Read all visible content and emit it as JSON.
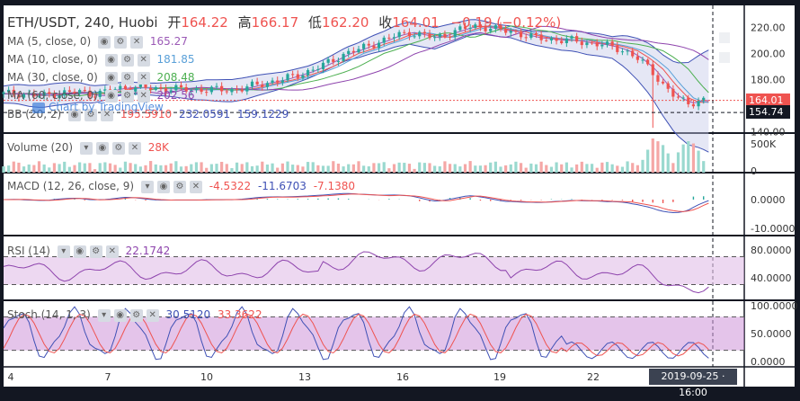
{
  "header": {
    "symbol": "ETH/USDT, 240, Huobi",
    "open_label": "开",
    "open": "164.22",
    "high_label": "高",
    "high": "166.17",
    "low_label": "低",
    "low": "162.20",
    "close_label": "收",
    "close": "164.01",
    "change": "−0.19 (−0.12%)"
  },
  "legends": {
    "ma5": {
      "label": "MA (5, close, 0)",
      "value": "165.27",
      "color": "#9b59b6"
    },
    "ma10": {
      "label": "MA (10, close, 0)",
      "value": "181.85",
      "color": "#5aa0d8"
    },
    "ma30": {
      "label": "MA (30, close, 0)",
      "value": "208.48",
      "color": "#4caf50"
    },
    "ma60": {
      "label": "MA (60, close, 0)",
      "value": "202.56",
      "color": "#8e44ad"
    },
    "bb": {
      "label": "BB (20, 2)",
      "v1": "195.5910",
      "v2": "232.0591",
      "v3": "159.1229"
    },
    "volume": {
      "label": "Volume (20)",
      "value": "28K"
    },
    "macd": {
      "label": "MACD (12, 26, close, 9)",
      "v1": "-4.5322",
      "v2": "-11.6703",
      "v3": "-7.1380"
    },
    "rsi": {
      "label": "RSI (14)",
      "value": "22.1742"
    },
    "stoch": {
      "label": "Stoch (14, 1, 3)",
      "v1": "30.5120",
      "v2": "33.3622"
    }
  },
  "watermark": "Chart by TradingView",
  "price_tags": {
    "last": "164.01",
    "crosshair": "154.74",
    "last_color": "#ef5350",
    "crosshair_color": "#131722"
  },
  "crosshair_time": "2019-09-25 · 16:00",
  "colors": {
    "up": "#26a69a",
    "down": "#ef5350",
    "bb_fill": "#c5cae9",
    "rsi_band": "#e1bee7",
    "stoch_band": "#ce93d8"
  },
  "chart_data": [
    {
      "type": "candlestick",
      "title": "ETH/USDT, 240, Huobi",
      "x_ticks": [
        "4",
        "7",
        "10",
        "13",
        "16",
        "19",
        "22"
      ],
      "y_ticks": [
        140,
        160,
        180,
        200,
        220
      ],
      "ylim": [
        139,
        234
      ],
      "last": 164.01,
      "crosshair_y": 154.74,
      "close_path": [
        [
          0,
          169
        ],
        [
          10,
          169.5
        ],
        [
          20,
          168
        ],
        [
          30,
          167.5
        ],
        [
          40,
          169
        ],
        [
          50,
          170
        ],
        [
          60,
          170.5
        ],
        [
          70,
          169
        ],
        [
          80,
          170.5
        ],
        [
          90,
          173
        ],
        [
          100,
          174
        ],
        [
          110,
          173.5
        ],
        [
          120,
          173
        ],
        [
          130,
          173
        ],
        [
          140,
          172.5
        ],
        [
          150,
          172
        ],
        [
          160,
          172.5
        ],
        [
          170,
          172
        ],
        [
          180,
          172
        ],
        [
          190,
          173.5
        ],
        [
          200,
          176
        ],
        [
          210,
          178
        ],
        [
          220,
          180
        ],
        [
          230,
          183
        ],
        [
          240,
          186
        ],
        [
          250,
          190
        ],
        [
          260,
          195
        ],
        [
          270,
          200
        ],
        [
          280,
          203
        ],
        [
          290,
          207
        ],
        [
          300,
          210
        ],
        [
          310,
          214
        ],
        [
          320,
          216
        ],
        [
          330,
          214
        ],
        [
          340,
          212
        ],
        [
          350,
          215
        ],
        [
          360,
          218
        ],
        [
          370,
          221
        ],
        [
          380,
          220
        ],
        [
          390,
          218
        ],
        [
          400,
          217
        ],
        [
          410,
          214
        ],
        [
          420,
          212
        ],
        [
          430,
          211
        ],
        [
          440,
          210
        ],
        [
          450,
          210
        ],
        [
          460,
          208
        ],
        [
          470,
          207
        ],
        [
          480,
          205
        ],
        [
          490,
          202
        ],
        [
          500,
          196
        ],
        [
          510,
          188
        ],
        [
          520,
          176
        ],
        [
          530,
          166
        ],
        [
          540,
          162
        ],
        [
          550,
          164
        ]
      ],
      "volume_ticks": [
        "0",
        "500K"
      ],
      "macd_ticks": [
        "0.0000",
        "-10.0000"
      ],
      "rsi_ticks": [
        "40.0000",
        "80.0000"
      ],
      "rsi_bands": [
        30,
        70
      ],
      "stoch_ticks": [
        "0.0000",
        "50.0000",
        "100.0000"
      ],
      "stoch_bands": [
        20,
        80
      ]
    }
  ]
}
